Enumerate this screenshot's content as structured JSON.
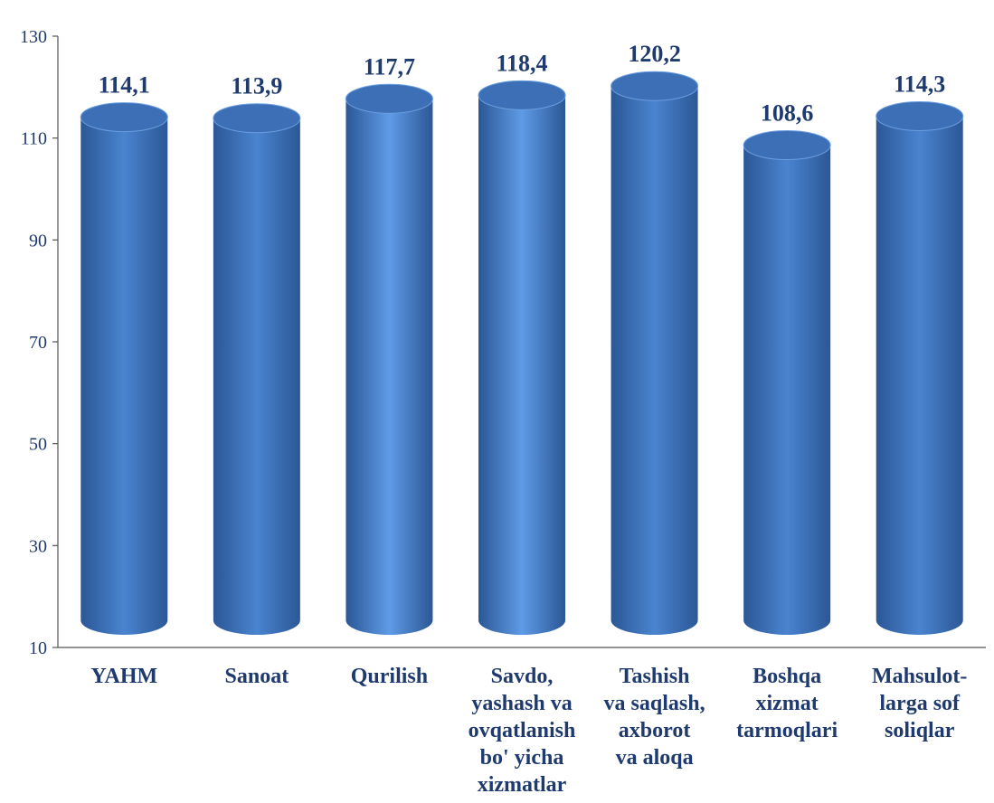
{
  "chart_data": {
    "type": "bar",
    "style": "3d-cylinder",
    "title": "",
    "xlabel": "",
    "ylabel": "",
    "ylim": [
      10,
      130
    ],
    "yticks": [
      10,
      30,
      50,
      70,
      90,
      110,
      130
    ],
    "ytick_labels": [
      "10",
      "30",
      "50",
      "70",
      "90",
      "110",
      "130"
    ],
    "grid": false,
    "legend": "none",
    "categories": [
      [
        "YAHM"
      ],
      [
        "Sanoat"
      ],
      [
        "Qurilish"
      ],
      [
        "Savdo,",
        "yashash va",
        "ovqatlanish",
        "bo' yicha",
        "xizmatlar"
      ],
      [
        "Tashish",
        "va saqlash,",
        "axborot",
        "va aloqa"
      ],
      [
        "Boshqa",
        "xizmat",
        "tarmoqlari"
      ],
      [
        "Mahsulot-",
        "larga sof",
        "soliqlar"
      ]
    ],
    "values": [
      114.1,
      113.9,
      117.7,
      118.4,
      120.2,
      108.6,
      114.3
    ],
    "data_labels": [
      "114,1",
      "113,9",
      "117,7",
      "118,4",
      "120,2",
      "108,6",
      "114,3"
    ],
    "colors": {
      "bar_dark": "#2b5796",
      "bar_mid": "#4a84cf",
      "bar_light": "#5f9be6",
      "bar_top": "#3c6fb5",
      "text": "#1f3a6e",
      "axis": "#555555"
    }
  }
}
